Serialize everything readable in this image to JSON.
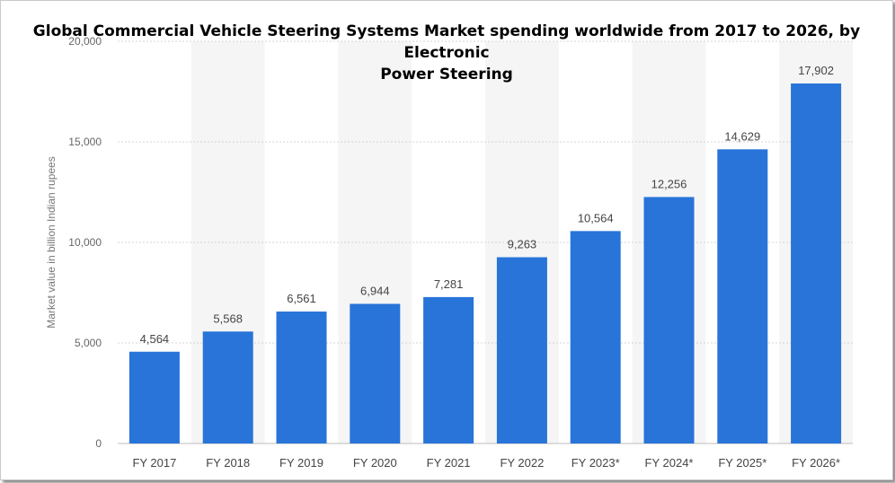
{
  "chart_data": {
    "type": "bar",
    "title_line1": "Global Commercial Vehicle Steering Systems Market spending worldwide from 2017 to 2026, by Electronic",
    "title_line2": "Power Steering",
    "ylabel": "Market value in billion Indian rupees",
    "xlabel": "",
    "categories": [
      "FY 2017",
      "FY 2018",
      "FY 2019",
      "FY 2020",
      "FY 2021",
      "FY 2022",
      "FY 2023*",
      "FY 2024*",
      "FY 2025*",
      "FY 2026*"
    ],
    "values": [
      4564,
      5568,
      6561,
      6944,
      7281,
      9263,
      10564,
      12256,
      14629,
      17902
    ],
    "value_labels": [
      "4,564",
      "5,568",
      "6,561",
      "6,944",
      "7,281",
      "9,263",
      "10,564",
      "12,256",
      "14,629",
      "17,902"
    ],
    "yticks": [
      0,
      5000,
      10000,
      15000,
      20000
    ],
    "ytick_labels": [
      "0",
      "5,000",
      "10,000",
      "15,000",
      "20,000"
    ],
    "ylim": [
      0,
      20000
    ],
    "grid": true,
    "bar_color": "#2874d9",
    "band_color": "#f5f5f5"
  }
}
